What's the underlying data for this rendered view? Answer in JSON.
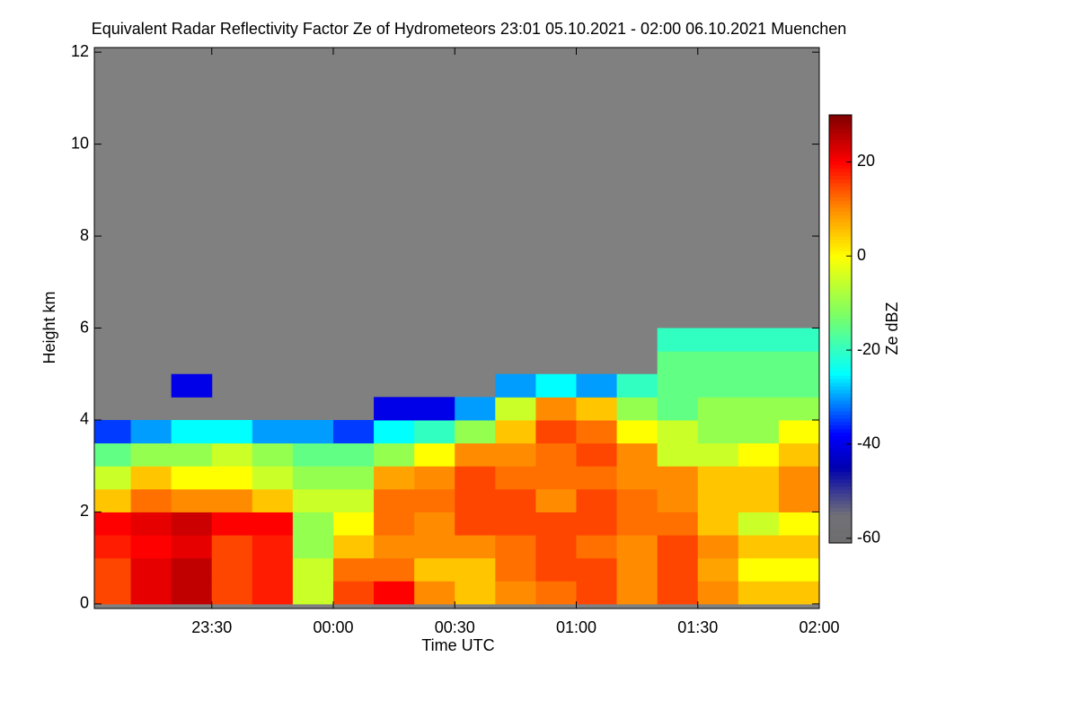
{
  "chart_data": {
    "type": "heatmap",
    "title": "Equivalent Radar Reflectivity Factor Ze of Hydrometeors   23:01 05.10.2021 - 02:00 06.10.2021 Muenchen",
    "x_label": "Time UTC",
    "y_label": "Height km",
    "colorbar_label": "Ze dBZ",
    "x": [
      23.0833,
      23.25,
      23.4167,
      23.5833,
      23.75,
      23.9167,
      24.0833,
      24.25,
      24.4167,
      24.5833,
      24.75,
      24.9167,
      25.0833,
      25.25,
      25.4167,
      25.5833,
      25.75,
      25.9167
    ],
    "y": [
      0.25,
      0.75,
      1.25,
      1.75,
      2.25,
      2.75,
      3.25,
      3.75,
      4.25,
      4.75,
      5.25,
      5.75
    ],
    "z": [
      [
        15,
        22,
        25,
        15,
        18,
        -5,
        15,
        20,
        10,
        5,
        10,
        12,
        15,
        10,
        15,
        10,
        5,
        5
      ],
      [
        15,
        22,
        25,
        15,
        18,
        -5,
        12,
        12,
        5,
        5,
        12,
        15,
        15,
        10,
        15,
        8,
        0,
        0
      ],
      [
        18,
        20,
        22,
        15,
        18,
        -10,
        5,
        10,
        10,
        10,
        12,
        15,
        12,
        10,
        15,
        10,
        5,
        5
      ],
      [
        20,
        22,
        24,
        20,
        20,
        -10,
        0,
        12,
        10,
        15,
        15,
        15,
        15,
        12,
        12,
        5,
        -5,
        0
      ],
      [
        5,
        12,
        10,
        10,
        5,
        -5,
        -5,
        12,
        12,
        15,
        15,
        10,
        15,
        12,
        10,
        5,
        5,
        10
      ],
      [
        -5,
        5,
        0,
        0,
        -5,
        -10,
        -10,
        8,
        10,
        15,
        12,
        12,
        12,
        10,
        10,
        5,
        5,
        10
      ],
      [
        -15,
        -10,
        -10,
        -5,
        -10,
        -15,
        -15,
        -10,
        0,
        10,
        10,
        12,
        15,
        10,
        -5,
        -5,
        0,
        5
      ],
      [
        -35,
        -30,
        -25,
        -25,
        -30,
        -30,
        -35,
        -25,
        -20,
        -10,
        5,
        15,
        12,
        0,
        -5,
        -10,
        -10,
        0
      ],
      [
        null,
        null,
        null,
        null,
        null,
        null,
        null,
        -40,
        -40,
        -30,
        -5,
        10,
        5,
        -10,
        -15,
        -10,
        -10,
        -10
      ],
      [
        null,
        null,
        -40,
        null,
        null,
        null,
        null,
        null,
        null,
        null,
        -30,
        -25,
        -30,
        -20,
        -15,
        -15,
        -15,
        -15
      ],
      [
        null,
        null,
        null,
        null,
        null,
        null,
        null,
        null,
        null,
        null,
        null,
        null,
        null,
        null,
        -15,
        -15,
        -15,
        -15
      ],
      [
        null,
        null,
        null,
        null,
        null,
        null,
        null,
        null,
        null,
        null,
        null,
        null,
        null,
        null,
        -20,
        -20,
        -20,
        -20
      ]
    ],
    "xlim": [
      23.0167,
      26.0
    ],
    "xticks": [
      {
        "value": 23.5,
        "label": "23:30"
      },
      {
        "value": 24.0,
        "label": "00:00"
      },
      {
        "value": 24.5,
        "label": "00:30"
      },
      {
        "value": 25.0,
        "label": "01:00"
      },
      {
        "value": 25.5,
        "label": "01:30"
      },
      {
        "value": 26.0,
        "label": "02:00"
      }
    ],
    "ylim": [
      -0.1,
      12.1
    ],
    "yticks": [
      0,
      2,
      4,
      6,
      8,
      10,
      12
    ],
    "zlim": [
      -61,
      30
    ],
    "colorbar_ticks": [
      -60,
      -40,
      -20,
      0,
      20
    ],
    "colorscale": [
      [
        -61,
        "#6e6e6e"
      ],
      [
        -55,
        "#707078"
      ],
      [
        -45,
        "#0000b0"
      ],
      [
        -38,
        "#0000ff"
      ],
      [
        -25,
        "#00ffff"
      ],
      [
        -12,
        "#80ff60"
      ],
      [
        0,
        "#ffff00"
      ],
      [
        10,
        "#ff8c00"
      ],
      [
        20,
        "#ff0000"
      ],
      [
        30,
        "#800000"
      ]
    ],
    "missing_color": "#808080"
  }
}
